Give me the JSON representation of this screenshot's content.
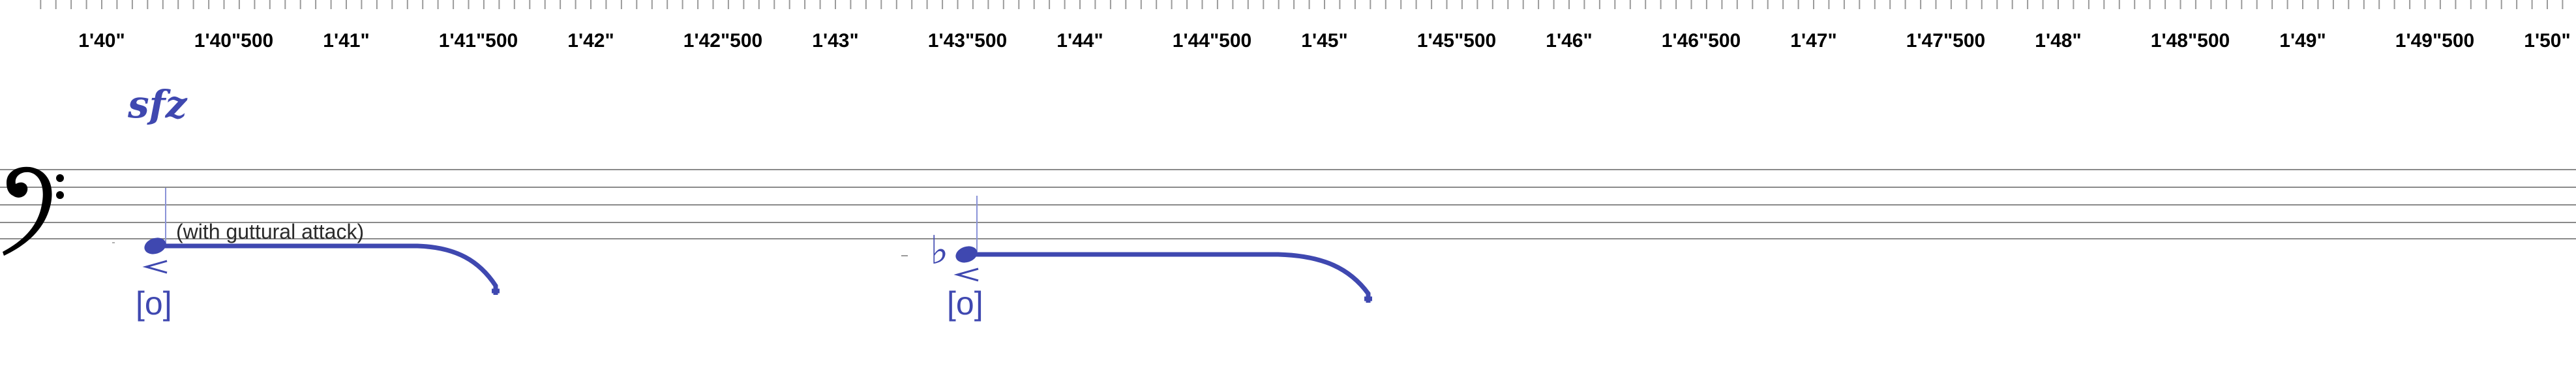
{
  "ruler": {
    "labels": [
      "1'40\"",
      "1'40\"500",
      "1'41\"",
      "1'41\"500",
      "1'42\"",
      "1'42\"500",
      "1'43\"",
      "1'43\"500",
      "1'44\"",
      "1'44\"500",
      "1'45\"",
      "1'45\"500",
      "1'46\"",
      "1'46\"500",
      "1'47\"",
      "1'47\"500",
      "1'48\"",
      "1'48\"500",
      "1'49\"",
      "1'49\"500",
      "1'50\""
    ]
  },
  "staff": {
    "clef": "bass-clef-icon"
  },
  "events": {
    "dynamic": "sfz",
    "annotation": "(with guttural attack)",
    "note1_vowel": "[o]",
    "note2_vowel": "[o]",
    "note2_accidental": "♭"
  },
  "colors": {
    "notation": "#3f48b0",
    "staff_lines": "#8a8a8a",
    "ruler": "#9a9a9a"
  }
}
